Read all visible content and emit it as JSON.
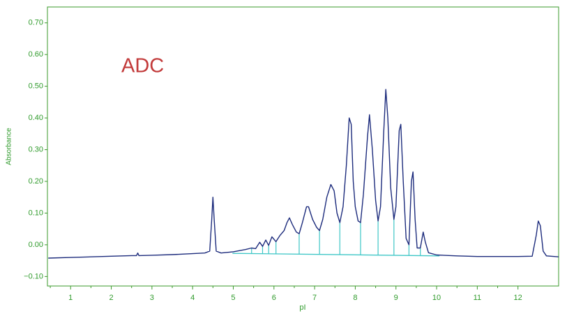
{
  "chart_data": {
    "type": "line",
    "annotation": "ADC",
    "xlabel": "pI",
    "ylabel": "Absorbance",
    "color": "#1c2b7c",
    "axis_color": "#3a9a2a",
    "baseline_color": "#3cc6c6",
    "xlim": [
      0.43,
      13.0
    ],
    "ylim": [
      -0.13,
      0.75
    ],
    "xticks": [
      1,
      2,
      3,
      4,
      5,
      6,
      7,
      8,
      9,
      10,
      11,
      12
    ],
    "yticks": [
      {
        "value": 0.7,
        "label": "0.70"
      },
      {
        "value": 0.6,
        "label": "0.60"
      },
      {
        "value": 0.5,
        "label": "0.50"
      },
      {
        "value": 0.4,
        "label": "0.40"
      },
      {
        "value": 0.3,
        "label": "0.30"
      },
      {
        "value": 0.2,
        "label": "0.20"
      },
      {
        "value": 0.1,
        "label": "0.10"
      },
      {
        "value": 0,
        "label": "0.00"
      },
      {
        "value": -0.1,
        "label": "−0.10"
      }
    ],
    "x": [
      0.45,
      1.0,
      1.5,
      2.0,
      2.5,
      2.62,
      2.65,
      2.68,
      3.0,
      3.5,
      4.0,
      4.3,
      4.42,
      4.47,
      4.5,
      4.53,
      4.58,
      4.7,
      5.0,
      5.3,
      5.45,
      5.55,
      5.65,
      5.72,
      5.8,
      5.87,
      5.95,
      6.05,
      6.15,
      6.25,
      6.32,
      6.38,
      6.45,
      6.55,
      6.62,
      6.7,
      6.8,
      6.85,
      6.95,
      7.05,
      7.12,
      7.2,
      7.3,
      7.4,
      7.48,
      7.55,
      7.62,
      7.7,
      7.78,
      7.85,
      7.9,
      7.95,
      8.0,
      8.07,
      8.13,
      8.2,
      8.3,
      8.35,
      8.42,
      8.5,
      8.56,
      8.62,
      8.7,
      8.75,
      8.8,
      8.87,
      8.95,
      9.0,
      9.08,
      9.12,
      9.18,
      9.25,
      9.32,
      9.38,
      9.42,
      9.47,
      9.52,
      9.6,
      9.67,
      9.72,
      9.8,
      10.0,
      10.5,
      11.0,
      11.5,
      12.0,
      12.35,
      12.45,
      12.5,
      12.55,
      12.62,
      12.7,
      13.0
    ],
    "values": [
      -0.042,
      -0.04,
      -0.038,
      -0.036,
      -0.034,
      -0.034,
      -0.026,
      -0.034,
      -0.033,
      -0.031,
      -0.028,
      -0.026,
      -0.02,
      0.08,
      0.15,
      0.08,
      -0.02,
      -0.026,
      -0.022,
      -0.015,
      -0.01,
      -0.012,
      0.008,
      -0.005,
      0.015,
      -0.002,
      0.025,
      0.01,
      0.03,
      0.045,
      0.07,
      0.085,
      0.065,
      0.04,
      0.035,
      0.07,
      0.12,
      0.12,
      0.08,
      0.055,
      0.045,
      0.08,
      0.15,
      0.19,
      0.17,
      0.1,
      0.07,
      0.12,
      0.25,
      0.4,
      0.38,
      0.2,
      0.12,
      0.075,
      0.07,
      0.16,
      0.34,
      0.41,
      0.3,
      0.14,
      0.075,
      0.12,
      0.36,
      0.49,
      0.4,
      0.18,
      0.08,
      0.12,
      0.36,
      0.38,
      0.2,
      0.02,
      0.0,
      0.2,
      0.23,
      0.08,
      -0.01,
      -0.01,
      0.04,
      0.01,
      -0.025,
      -0.032,
      -0.035,
      -0.037,
      -0.037,
      -0.037,
      -0.036,
      0.03,
      0.075,
      0.06,
      -0.02,
      -0.035,
      -0.038
    ],
    "baseline": {
      "x": [
        4.98,
        10.07
      ],
      "y": [
        -0.027,
        -0.035
      ]
    },
    "drop_lines": [
      5.45,
      5.72,
      5.87,
      6.05,
      6.62,
      7.12,
      7.62,
      8.13,
      8.56,
      8.95,
      9.32,
      9.6
    ]
  }
}
